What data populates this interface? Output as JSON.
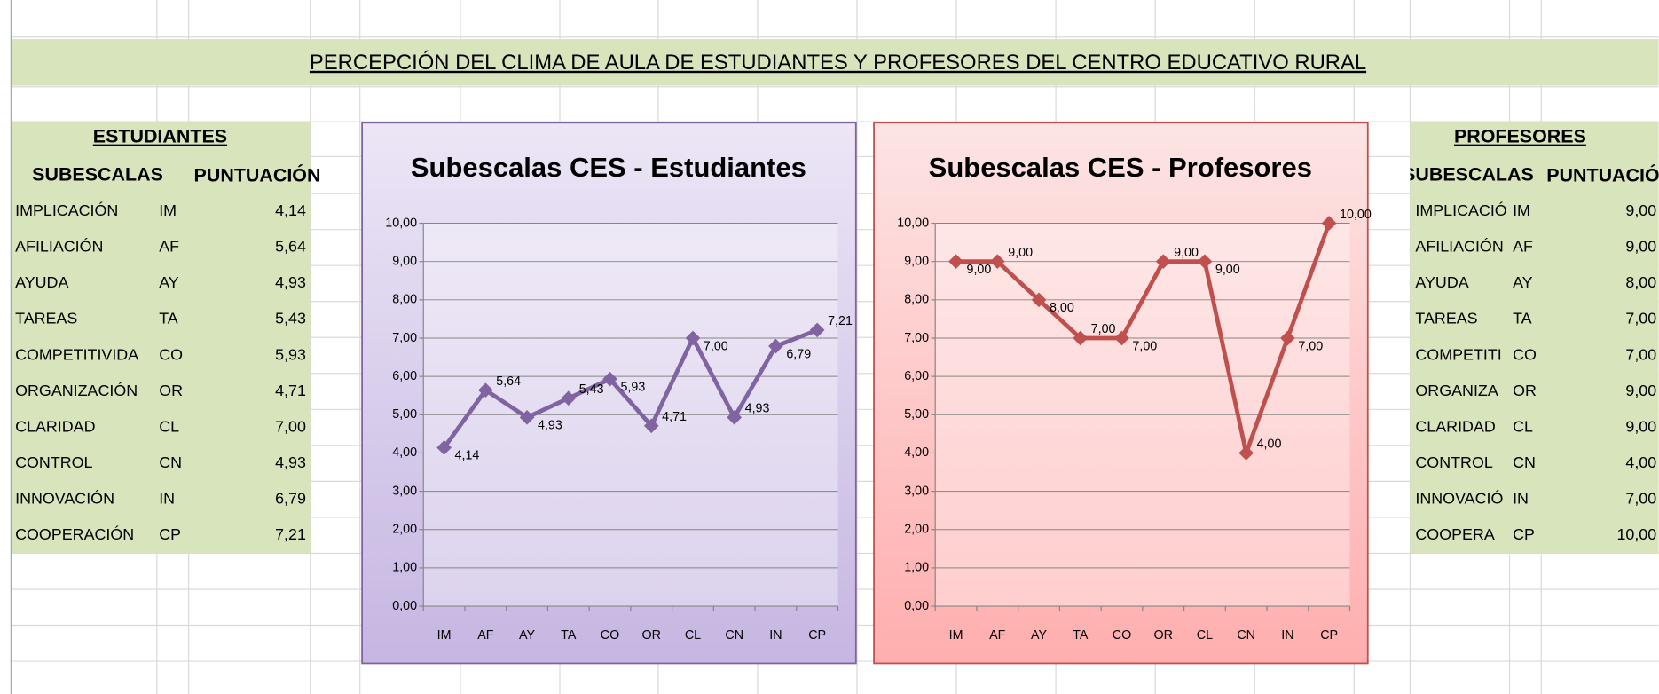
{
  "title": "PERCEPCIÓN DEL CLIMA DE AULA DE ESTUDIANTES Y PROFESORES DEL CENTRO EDUCATIVO RURAL",
  "tables": [
    {
      "heading": "ESTUDIANTES",
      "columns": [
        "SUBESCALAS",
        "PUNTUACIÓN"
      ],
      "rows": [
        [
          "IMPLICACIÓN",
          "IM",
          "4,14"
        ],
        [
          "AFILIACIÓN",
          "AF",
          "5,64"
        ],
        [
          "AYUDA",
          "AY",
          "4,93"
        ],
        [
          "TAREAS",
          "TA",
          "5,43"
        ],
        [
          "COMPETITIVIDA",
          "CO",
          "5,93"
        ],
        [
          "ORGANIZACIÓN",
          "OR",
          "4,71"
        ],
        [
          "CLARIDAD",
          "CL",
          "7,00"
        ],
        [
          "CONTROL",
          "CN",
          "4,93"
        ],
        [
          "INNOVACIÓN",
          "IN",
          "6,79"
        ],
        [
          "COOPERACIÓN",
          "CP",
          "7,21"
        ]
      ]
    },
    {
      "heading": "PROFESORES",
      "columns": [
        "SUBESCALAS",
        "PUNTUACIÓN"
      ],
      "rows": [
        [
          "IMPLICACIÓ",
          "IM",
          "9,00"
        ],
        [
          "AFILIACIÓN",
          "AF",
          "9,00"
        ],
        [
          "AYUDA",
          "AY",
          "8,00"
        ],
        [
          "TAREAS",
          "TA",
          "7,00"
        ],
        [
          "COMPETITI",
          "CO",
          "7,00"
        ],
        [
          "ORGANIZA",
          "OR",
          "9,00"
        ],
        [
          "CLARIDAD",
          "CL",
          "9,00"
        ],
        [
          "CONTROL",
          "CN",
          "4,00"
        ],
        [
          "INNOVACIÓ",
          "IN",
          "7,00"
        ],
        [
          "COOPERA",
          "CP",
          "10,00"
        ]
      ]
    }
  ],
  "chart_data": [
    {
      "type": "line",
      "title": "Subescalas CES - Estudiantes",
      "color": "#8064a2",
      "categories": [
        "IM",
        "AF",
        "AY",
        "TA",
        "CO",
        "OR",
        "CL",
        "CN",
        "IN",
        "CP"
      ],
      "values": [
        4.14,
        5.64,
        4.93,
        5.43,
        5.93,
        4.71,
        7.0,
        4.93,
        6.79,
        7.21
      ],
      "value_labels": [
        "4,14",
        "5,64",
        "4,93",
        "5,43",
        "5,93",
        "4,71",
        "7,00",
        "4,93",
        "6,79",
        "7,21"
      ],
      "ylim": [
        0,
        10
      ],
      "grid": true,
      "yticks": [
        {
          "value": 0,
          "label": "0,00"
        },
        {
          "value": 1,
          "label": "1,00"
        },
        {
          "value": 2,
          "label": "2,00"
        },
        {
          "value": 3,
          "label": "3,00"
        },
        {
          "value": 4,
          "label": "4,00"
        },
        {
          "value": 5,
          "label": "5,00"
        },
        {
          "value": 6,
          "label": "6,00"
        },
        {
          "value": 7,
          "label": "7,00"
        },
        {
          "value": 8,
          "label": "8,00"
        },
        {
          "value": 9,
          "label": "9,00"
        },
        {
          "value": 10,
          "label": "10,00"
        }
      ]
    },
    {
      "type": "line",
      "title": "Subescalas CES - Profesores",
      "color": "#c0504d",
      "categories": [
        "IM",
        "AF",
        "AY",
        "TA",
        "CO",
        "OR",
        "CL",
        "CN",
        "IN",
        "CP"
      ],
      "values": [
        9,
        9,
        8,
        7,
        7,
        9,
        9,
        4,
        7,
        10
      ],
      "value_labels": [
        "9,00",
        "9,00",
        "8,00",
        "7,00",
        "7,00",
        "9,00",
        "9,00",
        "4,00",
        "7,00",
        "10,00"
      ],
      "ylim": [
        0,
        10
      ],
      "grid": true,
      "yticks": [
        {
          "value": 0,
          "label": "0,00"
        },
        {
          "value": 1,
          "label": "1,00"
        },
        {
          "value": 2,
          "label": "2,00"
        },
        {
          "value": 3,
          "label": "3,00"
        },
        {
          "value": 4,
          "label": "4,00"
        },
        {
          "value": 5,
          "label": "5,00"
        },
        {
          "value": 6,
          "label": "6,00"
        },
        {
          "value": 7,
          "label": "7,00"
        },
        {
          "value": 8,
          "label": "8,00"
        },
        {
          "value": 9,
          "label": "9,00"
        },
        {
          "value": 10,
          "label": "10,00"
        }
      ]
    }
  ]
}
